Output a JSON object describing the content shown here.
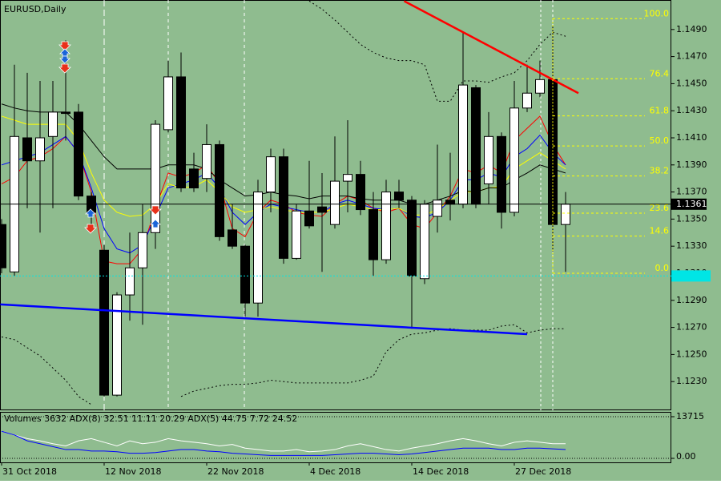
{
  "chart_data": [
    {
      "type": "candlestick",
      "title": "EURUSD,Daily",
      "categories": [
        "31 Oct 2018",
        null,
        null,
        null,
        null,
        null,
        null,
        null,
        "12 Nov 2018",
        null,
        null,
        null,
        null,
        null,
        null,
        null,
        "22 Nov 2018",
        null,
        null,
        null,
        null,
        null,
        null,
        null,
        "4 Dec 2018",
        null,
        null,
        null,
        null,
        null,
        null,
        null,
        "14 Dec 2018",
        null,
        null,
        null,
        null,
        null,
        null,
        null,
        "27 Dec 2018",
        null,
        null,
        null,
        null
      ],
      "open": [
        1.1346,
        1.1311,
        1.141,
        1.1393,
        1.1411,
        1.1429,
        1.1429,
        1.1367,
        1.1327,
        1.122,
        1.1294,
        1.1314,
        1.134,
        1.1416,
        1.1455,
        1.1387,
        1.138,
        1.1405,
        1.1342,
        1.133,
        1.1288,
        1.137,
        1.1396,
        1.1321,
        1.1356,
        1.1359,
        1.1346,
        1.1378,
        1.1383,
        1.1357,
        1.132,
        1.137,
        1.1364,
        1.1306,
        1.1352,
        1.1364,
        1.1361,
        1.1447,
        1.1376,
        1.1411,
        1.1355,
        1.1432,
        1.1443,
        1.1453,
        1.1346
      ],
      "high": [
        1.135,
        1.1464,
        1.1458,
        1.1452,
        1.1452,
        1.1482,
        1.1435,
        1.137,
        1.1331,
        1.1296,
        1.134,
        1.1361,
        1.1423,
        1.1467,
        1.1473,
        1.1399,
        1.142,
        1.1408,
        1.1361,
        1.1331,
        1.1379,
        1.1402,
        1.1402,
        1.1361,
        1.1393,
        1.1384,
        1.1411,
        1.1423,
        1.1393,
        1.137,
        1.1379,
        1.1379,
        1.1367,
        1.1364,
        1.1405,
        1.1399,
        1.1488,
        1.1449,
        1.1429,
        1.1414,
        1.1452,
        1.1464,
        1.1467,
        1.1493,
        1.137
      ],
      "low": [
        1.131,
        1.1308,
        1.1358,
        1.134,
        1.1358,
        1.1408,
        1.1364,
        1.134,
        1.1219,
        1.1219,
        1.1275,
        1.1272,
        1.1328,
        1.1414,
        1.137,
        1.137,
        1.137,
        1.1334,
        1.1328,
        1.1278,
        1.1278,
        1.1355,
        1.1317,
        1.132,
        1.1343,
        1.1311,
        1.1343,
        1.1355,
        1.1353,
        1.1308,
        1.1317,
        1.1358,
        1.1269,
        1.1302,
        1.134,
        1.1349,
        1.1358,
        1.1358,
        1.1361,
        1.1343,
        1.1352,
        1.1429,
        1.144,
        1.1326,
        1.1311
      ],
      "close": [
        1.1314,
        1.1411,
        1.1393,
        1.141,
        1.1429,
        1.1428,
        1.1367,
        1.1355,
        1.122,
        1.1294,
        1.1314,
        1.134,
        1.142,
        1.1455,
        1.1373,
        1.1373,
        1.1405,
        1.1337,
        1.133,
        1.1288,
        1.137,
        1.1396,
        1.1321,
        1.1356,
        1.1345,
        1.1355,
        1.1378,
        1.1383,
        1.1357,
        1.132,
        1.137,
        1.1364,
        1.1308,
        1.1361,
        1.1364,
        1.1361,
        1.1449,
        1.1361,
        1.1411,
        1.1355,
        1.1432,
        1.1443,
        1.1453,
        1.1346,
        1.1361
      ],
      "up_color": "#ffffff",
      "down_color": "#000000",
      "ylim": [
        1.121,
        1.151
      ],
      "yticks": [
        {
          "value": 1.123,
          "label": "1.1230"
        },
        {
          "value": 1.125,
          "label": "1.1250"
        },
        {
          "value": 1.127,
          "label": "1.1270"
        },
        {
          "value": 1.129,
          "label": "1.1290"
        },
        {
          "value": 1.131,
          "label": "1.1310"
        },
        {
          "value": 1.133,
          "label": "1.1330"
        },
        {
          "value": 1.135,
          "label": "1.1350"
        },
        {
          "value": 1.137,
          "label": "1.1370"
        },
        {
          "value": 1.139,
          "label": "1.1390"
        },
        {
          "value": 1.141,
          "label": "1.1410"
        },
        {
          "value": 1.143,
          "label": "1.1430"
        },
        {
          "value": 1.145,
          "label": "1.1450"
        },
        {
          "value": 1.147,
          "label": "1.1470"
        },
        {
          "value": 1.149,
          "label": "1.1490"
        }
      ],
      "lines": [
        {
          "color": "#ff0000",
          "values": [
            1.1376,
            1.1381,
            1.1393,
            1.1396,
            1.1402,
            1.1411,
            1.1399,
            1.137,
            1.1319,
            1.1317,
            1.1317,
            1.1328,
            1.1358,
            1.1384,
            1.1381,
            1.1384,
            1.139,
            1.1376,
            1.1343,
            1.1337,
            1.1355,
            1.1364,
            1.1361,
            1.1355,
            1.1353,
            1.1352,
            1.1361,
            1.1367,
            1.1364,
            1.1358,
            1.1355,
            1.1358,
            1.1346,
            1.1343,
            1.1355,
            1.1367,
            1.1387,
            1.1384,
            1.139,
            1.1384,
            1.1408,
            1.1417,
            1.1426,
            1.1405,
            1.139
          ]
        },
        {
          "color": "#0000ff",
          "values": [
            1.139,
            1.1393,
            1.1396,
            1.1399,
            1.1405,
            1.1411,
            1.1399,
            1.1373,
            1.1343,
            1.1328,
            1.1325,
            1.1331,
            1.1352,
            1.1373,
            1.1376,
            1.1379,
            1.1384,
            1.1373,
            1.1355,
            1.1346,
            1.1355,
            1.1361,
            1.1359,
            1.1357,
            1.1355,
            1.1355,
            1.1361,
            1.1364,
            1.1361,
            1.1358,
            1.1357,
            1.1358,
            1.1352,
            1.1351,
            1.1355,
            1.1364,
            1.1379,
            1.1379,
            1.1384,
            1.1381,
            1.1396,
            1.1402,
            1.1412,
            1.1399,
            1.139
          ]
        },
        {
          "color": "#ffff00",
          "values": [
            1.1426,
            1.1423,
            1.142,
            1.142,
            1.142,
            1.142,
            1.1408,
            1.1384,
            1.1364,
            1.1355,
            1.1352,
            1.1353,
            1.1361,
            1.1376,
            1.1373,
            1.1374,
            1.1379,
            1.137,
            1.1359,
            1.1355,
            1.1357,
            1.1359,
            1.1357,
            1.1355,
            1.1355,
            1.1355,
            1.1358,
            1.1361,
            1.1359,
            1.1357,
            1.1357,
            1.1358,
            1.1353,
            1.1353,
            1.1357,
            1.1364,
            1.137,
            1.137,
            1.1373,
            1.1374,
            1.1387,
            1.1393,
            1.1399,
            1.1393,
            1.1387
          ]
        },
        {
          "color": "#000000",
          "values": [
            1.1435,
            1.1432,
            1.143,
            1.1429,
            1.1429,
            1.1429,
            1.142,
            1.1408,
            1.1396,
            1.1387,
            1.1387,
            1.1387,
            1.1387,
            1.139,
            1.139,
            1.139,
            1.1387,
            1.1379,
            1.1373,
            1.1367,
            1.1368,
            1.137,
            1.1368,
            1.1367,
            1.1365,
            1.1367,
            1.1367,
            1.1367,
            1.1365,
            1.1364,
            1.1364,
            1.1364,
            1.1361,
            1.1361,
            1.1364,
            1.1367,
            1.1371,
            1.137,
            1.1373,
            1.1373,
            1.1379,
            1.1384,
            1.139,
            1.1387,
            1.1384
          ]
        },
        {
          "color": "#000000",
          "style": "dotted",
          "values": [
            null,
            null,
            null,
            null,
            null,
            null,
            null,
            null,
            null,
            null,
            null,
            null,
            null,
            null,
            null,
            null,
            null,
            null,
            null,
            null,
            null,
            null,
            null,
            null,
            1.1511,
            1.1505,
            1.1497,
            1.1488,
            1.1479,
            1.1473,
            1.1469,
            1.1467,
            1.1467,
            1.1464,
            1.1437,
            1.1437,
            1.1452,
            1.1452,
            1.1451,
            1.1455,
            1.1458,
            1.1467,
            1.1479,
            1.1488,
            1.1485
          ]
        },
        {
          "color": "#000000",
          "style": "dotted",
          "values": [
            1.1263,
            1.1261,
            1.1255,
            1.1249,
            1.124,
            1.1231,
            1.1219,
            1.1213,
            null,
            null,
            null,
            null,
            null,
            null,
            1.1219,
            1.1223,
            1.1225,
            1.1227,
            1.1228,
            1.1228,
            1.1229,
            1.1231,
            1.123,
            1.1229,
            1.1229,
            1.1229,
            1.1229,
            1.1229,
            1.1231,
            1.1234,
            1.1252,
            1.1261,
            1.1265,
            1.1266,
            1.1268,
            1.1269,
            1.1268,
            1.1268,
            1.1268,
            1.1271,
            1.1272,
            1.1266,
            1.1268,
            1.1269,
            1.1269
          ]
        }
      ],
      "trendlines": [
        {
          "color": "#ff0000",
          "x": [
            31.4,
            45
          ],
          "values": [
            1.1511,
            1.1443
          ]
        },
        {
          "color": "#0000ff",
          "x": [
            -0.1,
            41
          ],
          "values": [
            1.1287,
            1.1265
          ]
        }
      ],
      "hlines": [
        {
          "value": 1.1361,
          "color": "#000000"
        },
        {
          "value": 1.1308,
          "color": "#00e5e5",
          "style": "dotted"
        }
      ],
      "fibonacci": {
        "color": "#ffff00",
        "x": 43,
        "high": 1.1498,
        "low": 1.131,
        "levels": [
          {
            "value": 100,
            "label": "100.0"
          },
          76.4,
          61.8,
          {
            "value": 50,
            "label": "50.0"
          },
          38.2,
          23.6,
          14.6,
          {
            "value": 0,
            "label": "0.0"
          }
        ]
      }
    },
    {
      "type": "line",
      "title": "Volumes 3632 ADX(8) 32.51 11.11 20.29 ADX(5) 44.75 7.72 24.52",
      "ylim": [
        0,
        13715
      ],
      "yticks": [
        13715,
        {
          "value": 0,
          "label": "0.00"
        }
      ],
      "series": [
        {
          "color": "#ffffff",
          "values": [
            8902,
            7699,
            6496,
            5774,
            4812,
            4090,
            5774,
            6496,
            5293,
            4090,
            5774,
            4812,
            5293,
            6496,
            5774,
            5293,
            4812,
            4090,
            4571,
            3368,
            2887,
            2406,
            2406,
            2887,
            2165,
            2406,
            2887,
            4090,
            4812,
            3850,
            2887,
            2406,
            3368,
            4090,
            4812,
            5774,
            6496,
            5774,
            4812,
            4090,
            5293,
            5774,
            5293,
            4812,
            4812
          ]
        },
        {
          "color": "#0000ff",
          "values": [
            8902,
            7699,
            5774,
            4812,
            3850,
            2887,
            2887,
            2406,
            2406,
            2165,
            1684,
            1684,
            1925,
            2406,
            2887,
            2887,
            2406,
            2165,
            1684,
            1444,
            1203,
            962,
            962,
            962,
            962,
            962,
            1203,
            1444,
            1684,
            1684,
            1444,
            1203,
            1444,
            1925,
            2406,
            2887,
            3368,
            3368,
            3368,
            2887,
            2887,
            3368,
            3368,
            3128,
            2887
          ]
        }
      ]
    }
  ]
}
